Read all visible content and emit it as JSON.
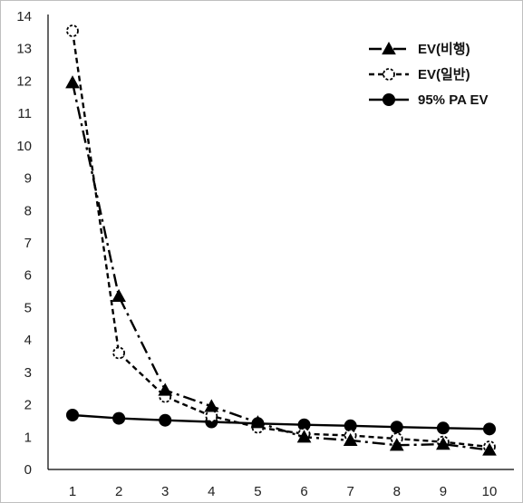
{
  "chart_data": {
    "type": "line",
    "title": "",
    "xlabel": "",
    "ylabel": "",
    "x": [
      1,
      2,
      3,
      4,
      5,
      6,
      7,
      8,
      9,
      10
    ],
    "ylim": [
      0,
      14
    ],
    "yticks": [
      0,
      1,
      2,
      3,
      4,
      5,
      6,
      7,
      8,
      9,
      10,
      11,
      12,
      13,
      14
    ],
    "grid": false,
    "legend_position": "top-right",
    "series": [
      {
        "name": "EV(비행)",
        "values": [
          11.95,
          5.35,
          2.45,
          1.95,
          1.45,
          1.0,
          0.9,
          0.75,
          0.78,
          0.6
        ],
        "marker": "triangle",
        "line_style": "dash-dot",
        "color": "#000000"
      },
      {
        "name": "EV(일반)",
        "values": [
          13.55,
          3.6,
          2.25,
          1.65,
          1.3,
          1.1,
          1.05,
          0.95,
          0.85,
          0.7
        ],
        "marker": "open-circle",
        "line_style": "dashed",
        "color": "#000000"
      },
      {
        "name": "95% PA EV",
        "values": [
          1.68,
          1.58,
          1.52,
          1.47,
          1.42,
          1.38,
          1.35,
          1.31,
          1.28,
          1.25
        ],
        "marker": "filled-circle",
        "line_style": "solid",
        "color": "#000000"
      }
    ]
  }
}
